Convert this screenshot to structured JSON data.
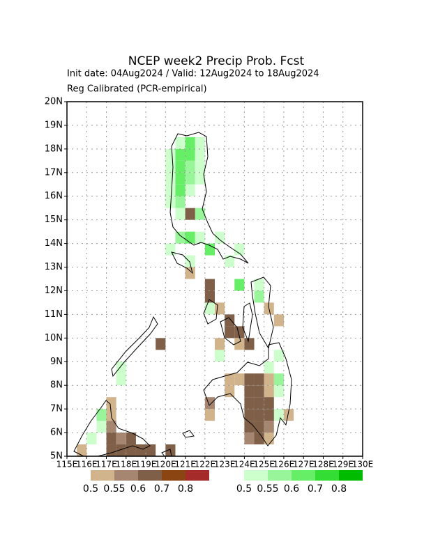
{
  "chart_data": {
    "type": "map",
    "title": "NCEP week2 Precip Prob. Fcst",
    "subtitle": "Init date: 04Aug2024 / Valid: 12Aug2024 to 18Aug2024",
    "subtitle2": "Reg Calibrated (PCR-empirical)",
    "xlim": [
      115,
      130
    ],
    "ylim": [
      5,
      20
    ],
    "xticks": [
      {
        "value": 115,
        "label": "115E"
      },
      {
        "value": 116,
        "label": "116E"
      },
      {
        "value": 117,
        "label": "117E"
      },
      {
        "value": 118,
        "label": "118E"
      },
      {
        "value": 119,
        "label": "119E"
      },
      {
        "value": 120,
        "label": "120E"
      },
      {
        "value": 121,
        "label": "121E"
      },
      {
        "value": 122,
        "label": "122E"
      },
      {
        "value": 123,
        "label": "123E"
      },
      {
        "value": 124,
        "label": "124E"
      },
      {
        "value": 125,
        "label": "125E"
      },
      {
        "value": 126,
        "label": "126E"
      },
      {
        "value": 127,
        "label": "127E"
      },
      {
        "value": 128,
        "label": "128E"
      },
      {
        "value": 129,
        "label": "129E"
      },
      {
        "value": 130,
        "label": "130E"
      }
    ],
    "yticks": [
      {
        "value": 5,
        "label": "5N"
      },
      {
        "value": 6,
        "label": "6N"
      },
      {
        "value": 7,
        "label": "7N"
      },
      {
        "value": 8,
        "label": "8N"
      },
      {
        "value": 9,
        "label": "9N"
      },
      {
        "value": 10,
        "label": "10N"
      },
      {
        "value": 11,
        "label": "11N"
      },
      {
        "value": 12,
        "label": "12N"
      },
      {
        "value": 13,
        "label": "13N"
      },
      {
        "value": 14,
        "label": "14N"
      },
      {
        "value": 15,
        "label": "15N"
      },
      {
        "value": 16,
        "label": "16N"
      },
      {
        "value": 17,
        "label": "17N"
      },
      {
        "value": 18,
        "label": "18N"
      },
      {
        "value": 19,
        "label": "19N"
      },
      {
        "value": 20,
        "label": "20N"
      }
    ],
    "grid": true,
    "dry_legend": {
      "levels": [
        0.5,
        0.55,
        0.6,
        0.7,
        0.8
      ],
      "colors": [
        "#d2b48c",
        "#a68670",
        "#7f5f47",
        "#8b4513",
        "#a52a2a"
      ]
    },
    "wet_legend": {
      "levels": [
        0.5,
        0.55,
        0.6,
        0.7,
        0.8
      ],
      "colors": [
        "#ccffcc",
        "#99f599",
        "#66ee66",
        "#33dd33",
        "#00bb00"
      ]
    },
    "wet_cells": [
      [
        120.5,
        17.5,
        0.6
      ],
      [
        121,
        17.5,
        0.6
      ],
      [
        120.5,
        17,
        0.6
      ],
      [
        121,
        17,
        0.55
      ],
      [
        121.5,
        17,
        0.5
      ],
      [
        120.5,
        16.5,
        0.6
      ],
      [
        121,
        16.5,
        0.55
      ],
      [
        120.5,
        16,
        0.6
      ],
      [
        121,
        16,
        0.5
      ],
      [
        120.5,
        15.5,
        0.55
      ],
      [
        120,
        15.5,
        0.5
      ],
      [
        120.5,
        15,
        0.5
      ],
      [
        121.5,
        15,
        0.55
      ],
      [
        121.5,
        17.5,
        0.5
      ],
      [
        120,
        17.5,
        0.5
      ],
      [
        120,
        16.5,
        0.5
      ],
      [
        120,
        17,
        0.5
      ],
      [
        120,
        16,
        0.5
      ],
      [
        121.5,
        16.5,
        0.5
      ],
      [
        120.5,
        18,
        0.5
      ],
      [
        121,
        18,
        0.6
      ],
      [
        121.5,
        18,
        0.5
      ],
      [
        120.5,
        14,
        0.55
      ],
      [
        121,
        14,
        0.6
      ],
      [
        121.5,
        14,
        0.5
      ],
      [
        122.5,
        14,
        0.5
      ],
      [
        122,
        13.5,
        0.6
      ],
      [
        123.5,
        13.5,
        0.5
      ],
      [
        123,
        13,
        0.5
      ],
      [
        120,
        13.5,
        0.5
      ],
      [
        121,
        13,
        0.5
      ],
      [
        123.5,
        12,
        0.6
      ],
      [
        124.5,
        12,
        0.5
      ],
      [
        124.5,
        11.5,
        0.55
      ],
      [
        122,
        11,
        0.5
      ],
      [
        125.5,
        8,
        0.55
      ],
      [
        125.5,
        7.5,
        0.5
      ],
      [
        125.5,
        9,
        0.5
      ],
      [
        125,
        8.5,
        0.5
      ],
      [
        125.5,
        6.5,
        0.5
      ],
      [
        122.5,
        9,
        0.5
      ],
      [
        117.5,
        8,
        0.5
      ],
      [
        117.5,
        8.5,
        0.5
      ],
      [
        116.5,
        6,
        0.5
      ],
      [
        116,
        5.5,
        0.5
      ],
      [
        116.5,
        6.5,
        0.55
      ]
    ],
    "dry_cells": [
      [
        121,
        15,
        0.6
      ],
      [
        121,
        12.5,
        0.5
      ],
      [
        122,
        11.5,
        0.6
      ],
      [
        122,
        12,
        0.6
      ],
      [
        122.5,
        11,
        0.5
      ],
      [
        123,
        10.5,
        0.6
      ],
      [
        123,
        10,
        0.6
      ],
      [
        123.5,
        10,
        0.6
      ],
      [
        123.5,
        9.5,
        0.5
      ],
      [
        122.5,
        9.5,
        0.5
      ],
      [
        124,
        9.5,
        0.6
      ],
      [
        123,
        8,
        0.5
      ],
      [
        123.5,
        8,
        0.5
      ],
      [
        124,
        8,
        0.6
      ],
      [
        124.5,
        8,
        0.6
      ],
      [
        125,
        8,
        0.5
      ],
      [
        123,
        7.5,
        0.5
      ],
      [
        124,
        7.5,
        0.6
      ],
      [
        124.5,
        7.5,
        0.6
      ],
      [
        125,
        7.5,
        0.5
      ],
      [
        124,
        7,
        0.6
      ],
      [
        124.5,
        7,
        0.6
      ],
      [
        125,
        7,
        0.6
      ],
      [
        124,
        6.5,
        0.6
      ],
      [
        124.5,
        6.5,
        0.6
      ],
      [
        125,
        6.5,
        0.6
      ],
      [
        124,
        6,
        0.6
      ],
      [
        124.5,
        6,
        0.6
      ],
      [
        125,
        6,
        0.55
      ],
      [
        124,
        5.5,
        0.55
      ],
      [
        124.5,
        5.5,
        0.6
      ],
      [
        125,
        5.5,
        0.5
      ],
      [
        122,
        7,
        0.55
      ],
      [
        122,
        6.5,
        0.5
      ],
      [
        125.5,
        10.5,
        0.5
      ],
      [
        125,
        11,
        0.5
      ],
      [
        126,
        6.5,
        0.5
      ],
      [
        117,
        7,
        0.5
      ],
      [
        117,
        6.5,
        0.5
      ],
      [
        117,
        6,
        0.55
      ],
      [
        117,
        5.5,
        0.6
      ],
      [
        117,
        5,
        0.6
      ],
      [
        117.5,
        5,
        0.6
      ],
      [
        118,
        5,
        0.6
      ],
      [
        118,
        5.5,
        0.6
      ],
      [
        117.5,
        5.5,
        0.55
      ],
      [
        118.5,
        5,
        0.6
      ],
      [
        119,
        5,
        0.6
      ],
      [
        120,
        5,
        0.6
      ],
      [
        119.5,
        9.5,
        0.6
      ],
      [
        115.5,
        5,
        0.5
      ]
    ]
  }
}
